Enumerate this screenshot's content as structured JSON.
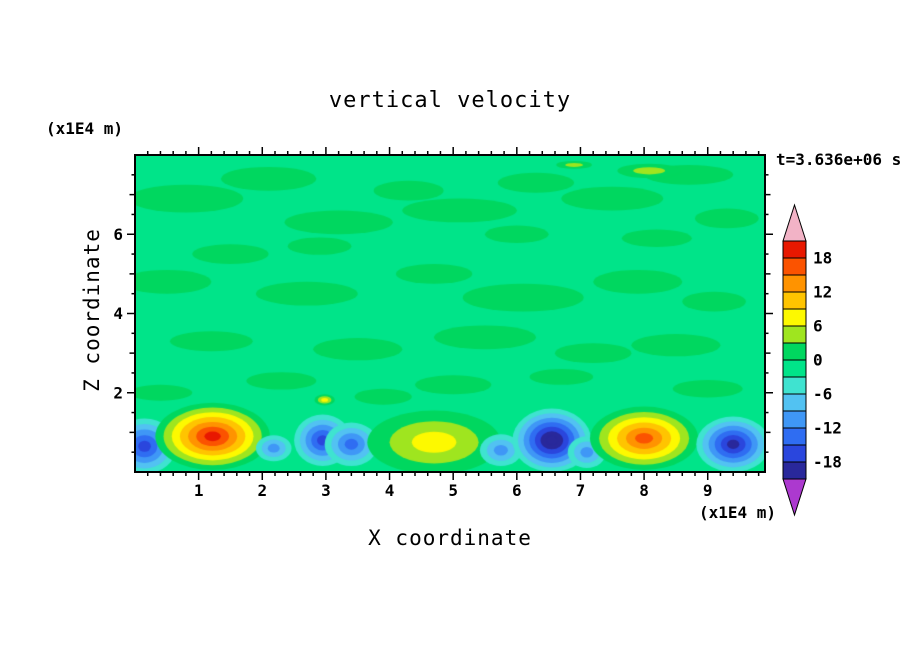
{
  "chart_data": {
    "type": "heatmap",
    "title": "vertical velocity",
    "xlabel": "X coordinate",
    "ylabel": "Z coordinate",
    "x_unit": "(x1E4 m)",
    "y_unit": "(x1E4 m)",
    "time_annotation": "t=3.636e+06 s",
    "x_range": [
      0,
      9.9
    ],
    "z_range": [
      0,
      8.0
    ],
    "x_major_ticks": [
      1,
      2,
      3,
      4,
      5,
      6,
      7,
      8,
      9
    ],
    "x_minor_step": 0.2,
    "z_major_ticks": [
      2,
      4,
      6
    ],
    "z_medium_ticks": [
      1,
      3,
      5,
      7
    ],
    "z_minor_step": 0.5,
    "contour_interval": 3,
    "levels": [
      -21,
      -18,
      -15,
      -12,
      -9,
      -6,
      -3,
      0,
      3,
      6,
      9,
      12,
      15,
      18,
      21
    ],
    "palette": [
      "#29289B",
      "#2A46DD",
      "#2F6DF2",
      "#3F97F6",
      "#52C2F2",
      "#3FE3D0",
      "#00E489",
      "#00D75F",
      "#9FE51F",
      "#FDF900",
      "#FFC400",
      "#FF9300",
      "#FB5300",
      "#E81800"
    ],
    "under_color": "#AC39CF",
    "over_color": "#F2B3C6",
    "colorbar_labels": [
      18,
      12,
      6,
      0,
      -6,
      -12,
      -18
    ],
    "base_band": 6,
    "texture_patches": [
      {
        "x": 0.8,
        "z": 6.9,
        "rx": 0.9,
        "rz": 0.35,
        "band": 7
      },
      {
        "x": 2.1,
        "z": 7.4,
        "rx": 0.75,
        "rz": 0.3,
        "band": 7
      },
      {
        "x": 3.2,
        "z": 6.3,
        "rx": 0.85,
        "rz": 0.3,
        "band": 7
      },
      {
        "x": 1.5,
        "z": 5.5,
        "rx": 0.6,
        "rz": 0.25,
        "band": 7
      },
      {
        "x": 4.3,
        "z": 7.1,
        "rx": 0.55,
        "rz": 0.25,
        "band": 7
      },
      {
        "x": 5.1,
        "z": 6.6,
        "rx": 0.9,
        "rz": 0.3,
        "band": 7
      },
      {
        "x": 6.3,
        "z": 7.3,
        "rx": 0.6,
        "rz": 0.25,
        "band": 7
      },
      {
        "x": 7.5,
        "z": 6.9,
        "rx": 0.8,
        "rz": 0.3,
        "band": 7
      },
      {
        "x": 8.7,
        "z": 7.5,
        "rx": 0.7,
        "rz": 0.25,
        "band": 7
      },
      {
        "x": 9.3,
        "z": 6.4,
        "rx": 0.5,
        "rz": 0.25,
        "band": 7
      },
      {
        "x": 0.5,
        "z": 4.8,
        "rx": 0.7,
        "rz": 0.3,
        "band": 7
      },
      {
        "x": 2.7,
        "z": 4.5,
        "rx": 0.8,
        "rz": 0.3,
        "band": 7
      },
      {
        "x": 4.7,
        "z": 5.0,
        "rx": 0.6,
        "rz": 0.25,
        "band": 7
      },
      {
        "x": 6.1,
        "z": 4.4,
        "rx": 0.95,
        "rz": 0.35,
        "band": 7
      },
      {
        "x": 7.9,
        "z": 4.8,
        "rx": 0.7,
        "rz": 0.3,
        "band": 7
      },
      {
        "x": 9.1,
        "z": 4.3,
        "rx": 0.5,
        "rz": 0.25,
        "band": 7
      },
      {
        "x": 1.2,
        "z": 3.3,
        "rx": 0.65,
        "rz": 0.25,
        "band": 7
      },
      {
        "x": 3.5,
        "z": 3.1,
        "rx": 0.7,
        "rz": 0.28,
        "band": 7
      },
      {
        "x": 5.5,
        "z": 3.4,
        "rx": 0.8,
        "rz": 0.3,
        "band": 7
      },
      {
        "x": 7.2,
        "z": 3.0,
        "rx": 0.6,
        "rz": 0.25,
        "band": 7
      },
      {
        "x": 8.5,
        "z": 3.2,
        "rx": 0.7,
        "rz": 0.28,
        "band": 7
      },
      {
        "x": 2.3,
        "z": 2.3,
        "rx": 0.55,
        "rz": 0.22,
        "band": 7
      },
      {
        "x": 5.0,
        "z": 2.2,
        "rx": 0.6,
        "rz": 0.24,
        "band": 7
      },
      {
        "x": 6.7,
        "z": 2.4,
        "rx": 0.5,
        "rz": 0.2,
        "band": 7
      },
      {
        "x": 9.0,
        "z": 2.1,
        "rx": 0.55,
        "rz": 0.22,
        "band": 7
      },
      {
        "x": 0.4,
        "z": 2.0,
        "rx": 0.5,
        "rz": 0.2,
        "band": 7
      },
      {
        "x": 3.9,
        "z": 1.9,
        "rx": 0.45,
        "rz": 0.2,
        "band": 7
      },
      {
        "x": 6.0,
        "z": 6.0,
        "rx": 0.5,
        "rz": 0.22,
        "band": 7
      },
      {
        "x": 8.2,
        "z": 5.9,
        "rx": 0.55,
        "rz": 0.22,
        "band": 7
      },
      {
        "x": 2.9,
        "z": 5.7,
        "rx": 0.5,
        "rz": 0.22,
        "band": 7
      }
    ],
    "features": [
      {
        "x": 0.15,
        "z": 0.65,
        "rx": 0.5,
        "rz": 0.7,
        "peak": -13
      },
      {
        "x": 1.22,
        "z": 0.9,
        "rx": 0.9,
        "rz": 0.85,
        "peak": 19
      },
      {
        "x": 2.18,
        "z": 0.6,
        "rx": 0.28,
        "rz": 0.33,
        "peak": -7
      },
      {
        "x": 2.95,
        "z": 0.8,
        "rx": 0.45,
        "rz": 0.65,
        "peak": -14
      },
      {
        "x": 3.4,
        "z": 0.7,
        "rx": 0.42,
        "rz": 0.55,
        "peak": -12
      },
      {
        "x": 2.98,
        "z": 1.82,
        "rx": 0.16,
        "rz": 0.14,
        "peak": 7
      },
      {
        "x": 4.7,
        "z": 0.75,
        "rx": 1.05,
        "rz": 0.8,
        "peak": 9
      },
      {
        "x": 5.75,
        "z": 0.55,
        "rx": 0.33,
        "rz": 0.4,
        "peak": -8
      },
      {
        "x": 6.55,
        "z": 0.8,
        "rx": 0.62,
        "rz": 0.8,
        "peak": -19
      },
      {
        "x": 7.1,
        "z": 0.5,
        "rx": 0.3,
        "rz": 0.4,
        "peak": -8
      },
      {
        "x": 8.0,
        "z": 0.85,
        "rx": 0.85,
        "rz": 0.8,
        "peak": 16
      },
      {
        "x": 9.4,
        "z": 0.7,
        "rx": 0.58,
        "rz": 0.7,
        "peak": -16
      },
      {
        "x": 8.08,
        "z": 7.6,
        "rx": 0.5,
        "rz": 0.18,
        "peak": 5
      },
      {
        "x": 6.9,
        "z": 7.75,
        "rx": 0.28,
        "rz": 0.1,
        "peak": 4
      }
    ]
  }
}
